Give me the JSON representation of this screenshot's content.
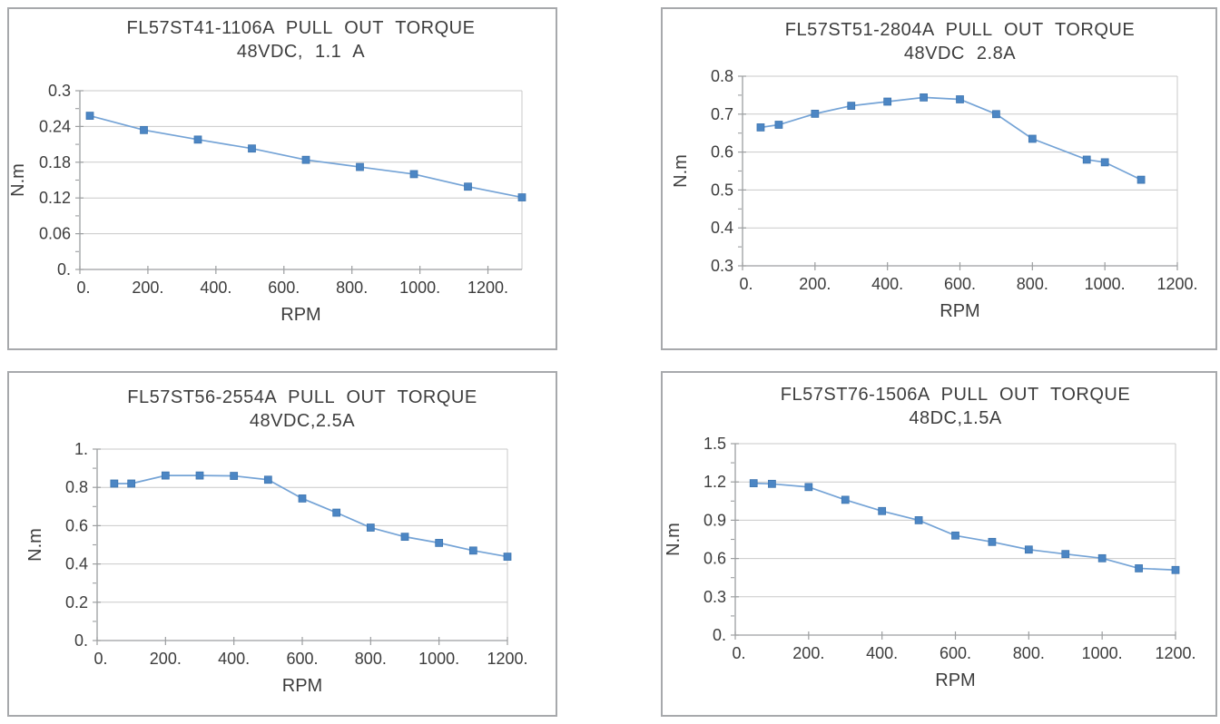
{
  "page": {
    "background": "#ffffff",
    "description": "Four pull-out torque curves for FL57 stepper motors"
  },
  "styles": {
    "line_color": "#74a3d6",
    "marker_fill": "#4c86c4",
    "marker_stroke": "#3d74ae",
    "grid_color": "#c9c9c9",
    "axis_color": "#9c9ea0",
    "text_color": "#3d3d3d",
    "panel_border": "#a7a9ac"
  },
  "chart_data": [
    {
      "type": "line",
      "title_line1": "FL57ST41-1106A  PULL OUT TORQUE",
      "title_line2": "48VDC, 1.1 A",
      "xlabel": "RPM",
      "ylabel": "N.m",
      "x": [
        30,
        150,
        300,
        450,
        600,
        750,
        900,
        1050,
        1200
      ],
      "y": [
        0.258,
        0.234,
        0.218,
        0.203,
        0.184,
        0.172,
        0.16,
        0.139,
        0.121
      ],
      "xlim": [
        0,
        1300
      ],
      "ylim": [
        0,
        0.3
      ],
      "xticks": [
        0,
        200,
        400,
        600,
        800,
        1000,
        1200
      ],
      "xtick_labels": [
        "0.",
        "200.",
        "400.",
        "600.",
        "800.",
        "1000.",
        "1200."
      ],
      "yticks": [
        0,
        0.06,
        0.12,
        0.18,
        0.24,
        0.3
      ],
      "ytick_labels": [
        "0.",
        "0.06",
        "0.12",
        "0.18",
        "0.24",
        "0.3"
      ],
      "grid": "horizontal",
      "legend": "none"
    },
    {
      "type": "line",
      "title_line1": "FL57ST51-2804A  PULL OUT TORQUE",
      "title_line2": "48VDC 2.8A",
      "xlabel": "RPM",
      "ylabel": "N.m",
      "x": [
        50,
        100,
        200,
        300,
        400,
        500,
        600,
        700,
        800,
        950,
        1000,
        1100
      ],
      "y": [
        0.665,
        0.672,
        0.701,
        0.722,
        0.733,
        0.744,
        0.739,
        0.7,
        0.635,
        0.58,
        0.573,
        0.527
      ],
      "xlim": [
        0,
        1200
      ],
      "ylim": [
        0.3,
        0.8
      ],
      "xticks": [
        0,
        200,
        400,
        600,
        800,
        1000,
        1200
      ],
      "xtick_labels": [
        "0.",
        "200.",
        "400.",
        "600.",
        "800.",
        "1000.",
        "1200."
      ],
      "yticks": [
        0.3,
        0.4,
        0.5,
        0.6,
        0.7,
        0.8
      ],
      "ytick_labels": [
        "0.3",
        "0.4",
        "0.5",
        "0.6",
        "0.7",
        "0.8"
      ],
      "grid": "horizontal",
      "legend": "none"
    },
    {
      "type": "line",
      "title_line1": "FL57ST56-2554A  PULL OUT TORQUE",
      "title_line2": "48VDC,2.5A",
      "xlabel": "RPM",
      "ylabel": "N.m",
      "x": [
        50,
        100,
        200,
        300,
        400,
        500,
        600,
        700,
        800,
        900,
        1000,
        1100,
        1200
      ],
      "y": [
        0.82,
        0.82,
        0.862,
        0.862,
        0.86,
        0.84,
        0.742,
        0.668,
        0.59,
        0.542,
        0.51,
        0.47,
        0.438
      ],
      "xlim": [
        0,
        1200
      ],
      "ylim": [
        0,
        1
      ],
      "xticks": [
        0,
        200,
        400,
        600,
        800,
        1000,
        1200
      ],
      "xtick_labels": [
        "0.",
        "200.",
        "400.",
        "600.",
        "800.",
        "1000.",
        "1200."
      ],
      "yticks": [
        0,
        0.2,
        0.4,
        0.6,
        0.8,
        1
      ],
      "ytick_labels": [
        "0.",
        "0.2",
        "0.4",
        "0.6",
        "0.8",
        "1."
      ],
      "grid": "horizontal",
      "legend": "none"
    },
    {
      "type": "line",
      "title_line1": "FL57ST76-1506A  PULL OUT TORQUE",
      "title_line2": "48DC,1.5A",
      "xlabel": "RPM",
      "ylabel": "N.m",
      "x": [
        50,
        100,
        200,
        300,
        400,
        500,
        600,
        700,
        800,
        900,
        1000,
        1100,
        1200
      ],
      "y": [
        1.19,
        1.185,
        1.16,
        1.06,
        0.972,
        0.9,
        0.78,
        0.73,
        0.67,
        0.635,
        0.602,
        0.523,
        0.51
      ],
      "xlim": [
        0,
        1200
      ],
      "ylim": [
        0,
        1.5
      ],
      "xticks": [
        0,
        200,
        400,
        600,
        800,
        1000,
        1200
      ],
      "xtick_labels": [
        "0.",
        "200.",
        "400.",
        "600.",
        "800.",
        "1000.",
        "1200."
      ],
      "yticks": [
        0,
        0.3,
        0.6,
        0.9,
        1.2,
        1.5
      ],
      "ytick_labels": [
        "0.",
        "0.3",
        "0.6",
        "0.9",
        "1.2",
        "1.5"
      ],
      "grid": "horizontal",
      "legend": "none"
    }
  ]
}
